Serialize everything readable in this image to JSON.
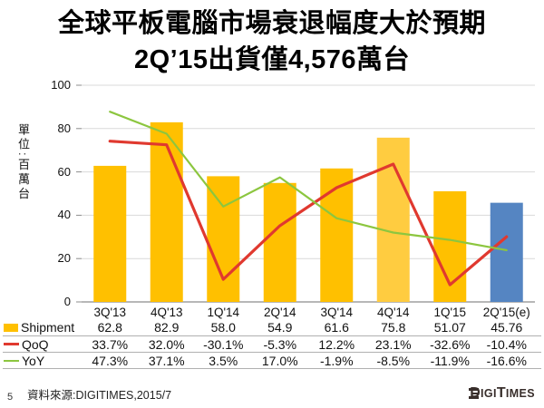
{
  "slide": {
    "title_line1": "全球平板電腦市場衰退幅度大於預期",
    "title_line2": "2Q’15出貨僅4,576萬台"
  },
  "chart_data": {
    "type": "combo-bar-line",
    "title": "全球平板電腦市場衰退幅度大於預期 2Q’15出貨僅4,576萬台",
    "unit_label": "單位:百萬台",
    "categories": [
      "3Q'13",
      "4Q'13",
      "1Q'14",
      "2Q'14",
      "3Q'14",
      "4Q'14",
      "1Q'15",
      "2Q'15(e)"
    ],
    "y_axis": {
      "min": 0,
      "max": 100,
      "ticks": [
        0,
        20,
        40,
        60,
        80,
        100
      ]
    },
    "grid": true,
    "legend_position": "table-left",
    "series": [
      {
        "name": "Shipment",
        "type": "bar",
        "values": [
          62.8,
          82.9,
          58.0,
          54.9,
          61.6,
          75.8,
          51.07,
          45.76
        ],
        "colors": [
          "#FFC000",
          "#FFC000",
          "#FFC000",
          "#FFC000",
          "#FFC000",
          "#FFCC40",
          "#FFC000",
          "#5585C2"
        ]
      },
      {
        "name": "QoQ",
        "type": "line",
        "color": "#E0392F",
        "values_pct": [
          33.7,
          32.0,
          -30.1,
          -5.3,
          12.2,
          23.1,
          -32.6,
          -10.4
        ]
      },
      {
        "name": "YoY",
        "type": "line",
        "color": "#8CC63F",
        "values_pct": [
          47.3,
          37.1,
          3.5,
          17.0,
          -1.9,
          -8.5,
          -11.9,
          -16.6
        ]
      }
    ],
    "table_rows": [
      {
        "label": "Shipment",
        "swatch": "bar",
        "color": "#FFC000",
        "values": [
          "62.8",
          "82.9",
          "58.0",
          "54.9",
          "61.6",
          "75.8",
          "51.07",
          "45.76"
        ]
      },
      {
        "label": "QoQ",
        "swatch": "line",
        "color": "#E0392F",
        "values": [
          "33.7%",
          "32.0%",
          "-30.1%",
          "-5.3%",
          "12.2%",
          "23.1%",
          "-32.6%",
          "-10.4%"
        ]
      },
      {
        "label": "YoY",
        "swatch": "line",
        "color": "#8CC63F",
        "values": [
          "47.3%",
          "37.1%",
          "3.5%",
          "17.0%",
          "-1.9%",
          "-8.5%",
          "-11.9%",
          "-16.6%"
        ]
      }
    ]
  },
  "footer": {
    "page_number": "5",
    "source_text": "資料來源:DIGITIMES,2015/7",
    "logo_text": "DIGITIMES"
  }
}
